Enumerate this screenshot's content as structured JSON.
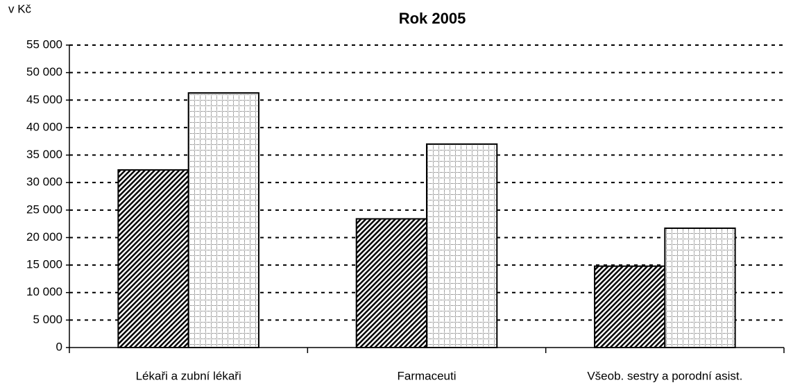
{
  "chart_data": {
    "type": "bar",
    "title": "Rok 2005",
    "y_label": "v Kč",
    "categories": [
      "Lékaři a zubní lékaři",
      "Farmaceuti",
      "Všeob. sestry a porodní asist."
    ],
    "series": [
      {
        "color": "#000000",
        "pattern": "diagonal",
        "values": [
          32300,
          23400,
          14800
        ]
      },
      {
        "color": "#000000",
        "pattern": "grid",
        "values": [
          46300,
          37000,
          21700
        ]
      }
    ],
    "ylim": [
      0,
      55000
    ],
    "yticks": [
      0,
      {
        "value": 5000,
        "label": "5 000"
      },
      {
        "value": 10000,
        "label": "10 000"
      },
      {
        "value": 15000,
        "label": "15 000"
      },
      {
        "value": 20000,
        "label": "20 000"
      },
      {
        "value": 25000,
        "label": "25 000"
      },
      {
        "value": 30000,
        "label": "30 000"
      },
      {
        "value": 35000,
        "label": "35 000"
      },
      {
        "value": 40000,
        "label": "40 000"
      },
      {
        "value": 45000,
        "label": "45 000"
      },
      {
        "value": 50000,
        "label": "50 000"
      },
      {
        "value": 55000,
        "label": "55 000"
      }
    ],
    "grid": true
  }
}
